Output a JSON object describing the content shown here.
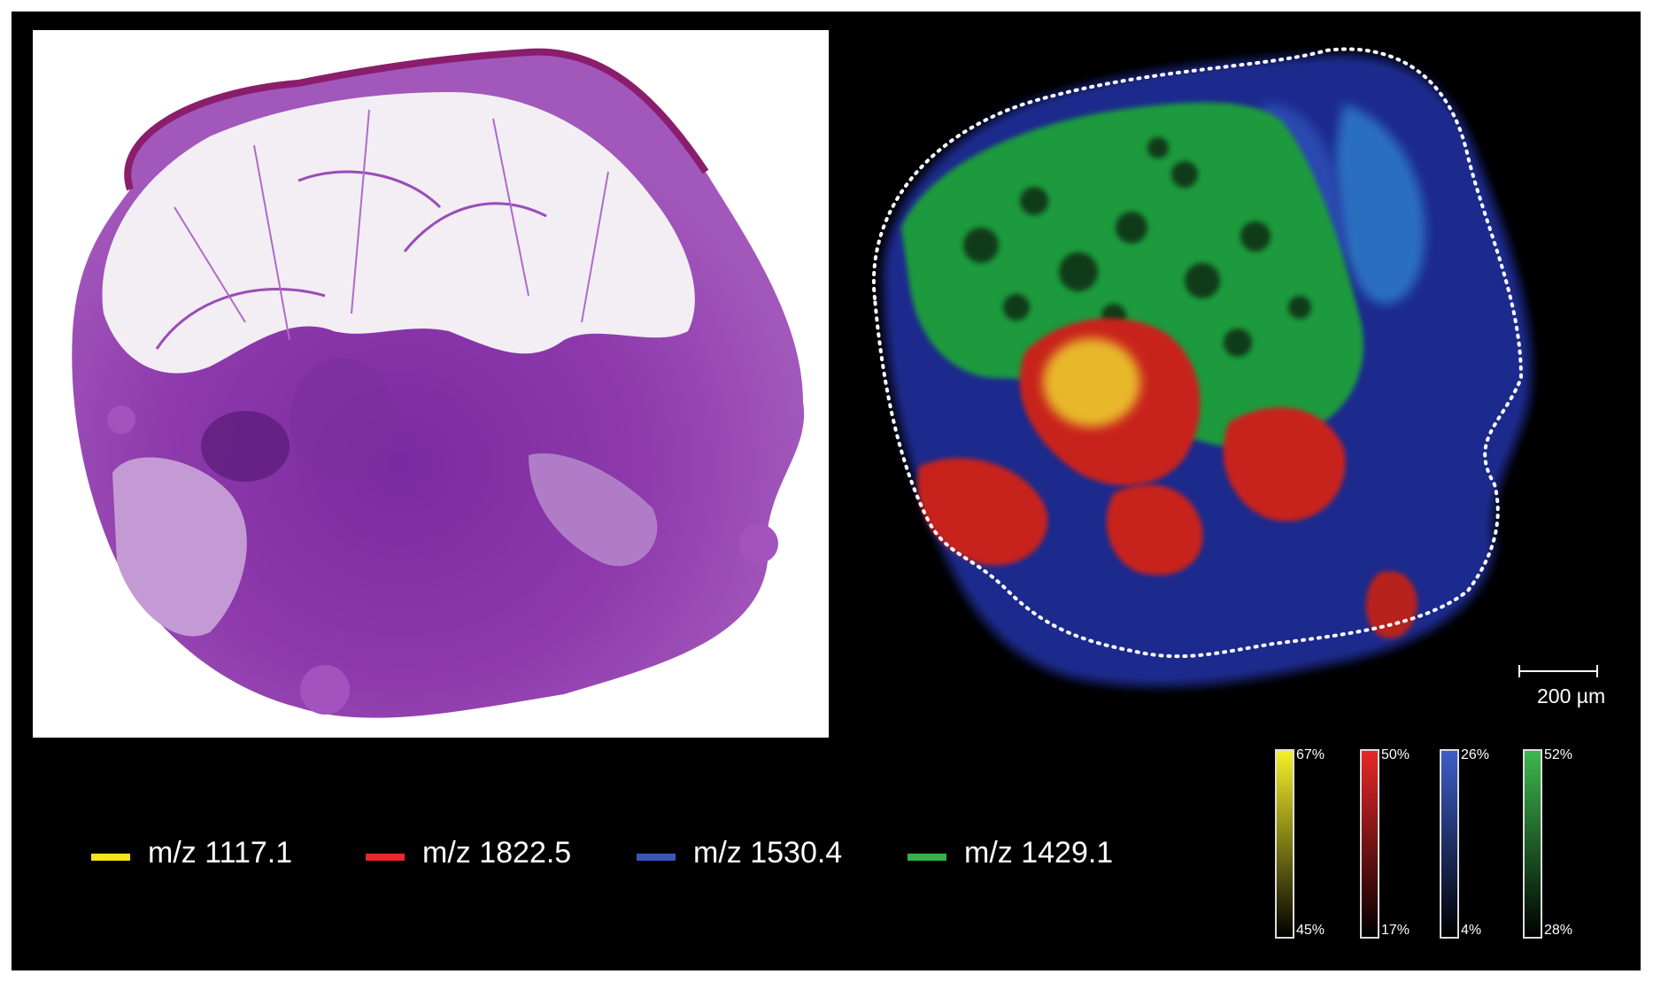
{
  "legend": {
    "items": [
      {
        "label": "m/z 1117.1",
        "color": "#f5e41c"
      },
      {
        "label": "m/z 1822.5",
        "color": "#e8282a"
      },
      {
        "label": "m/z 1530.4",
        "color": "#3d55b8"
      },
      {
        "label": "m/z 1429.1",
        "color": "#38b04a"
      }
    ]
  },
  "scale_bar": {
    "label": "200 µm"
  },
  "color_bars": [
    {
      "max": "67%",
      "min": "45%",
      "color": "#f5f02a"
    },
    {
      "max": "50%",
      "min": "17%",
      "color": "#e82628"
    },
    {
      "max": "26%",
      "min": "4%",
      "color": "#3d5ec8"
    },
    {
      "max": "52%",
      "min": "28%",
      "color": "#3cb84c"
    }
  ],
  "images": {
    "histology": {
      "icon": "he-stained-tissue-image"
    },
    "ms_imaging": {
      "icon": "mass-spec-ion-map-image",
      "outline": "dotted-white"
    }
  }
}
